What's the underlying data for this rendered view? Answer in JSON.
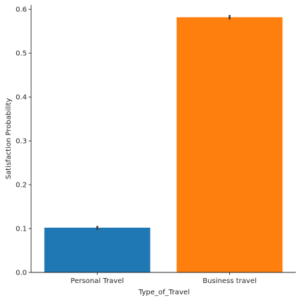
{
  "chart_data": {
    "type": "bar",
    "categories": [
      "Personal Travel",
      "Business travel"
    ],
    "values": [
      0.102,
      0.582
    ],
    "error_bars": [
      [
        0.097,
        0.106
      ],
      [
        0.577,
        0.587
      ]
    ],
    "colors": [
      "#1f77b4",
      "#ff7f0e"
    ],
    "xlabel": "Type_of_Travel",
    "ylabel": "Satisfaction Probability",
    "ylim": [
      0,
      0.61
    ],
    "yticks": [
      0.0,
      0.1,
      0.2,
      0.3,
      0.4,
      0.5,
      0.6
    ],
    "ytick_labels": [
      "0.0",
      "0.1",
      "0.2",
      "0.3",
      "0.4",
      "0.5",
      "0.6"
    ],
    "grid": false,
    "legend": false
  }
}
